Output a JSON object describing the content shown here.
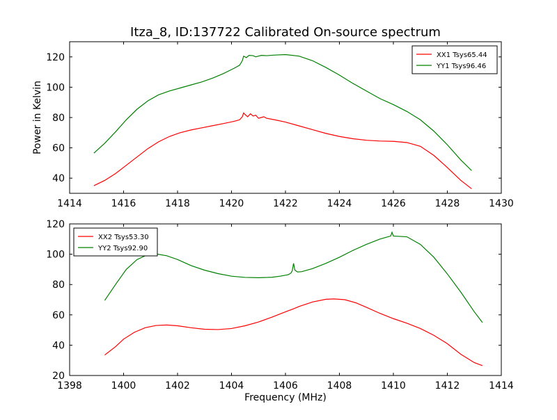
{
  "figure": {
    "title": "Itza_8, ID:137722 Calibrated On-source spectrum"
  },
  "chart_data": [
    {
      "type": "line",
      "title": "Itza_8, ID:137722 Calibrated On-source spectrum",
      "xlabel": "",
      "ylabel": "Power in Kelvin",
      "xlim": [
        1414,
        1430
      ],
      "ylim": [
        30,
        130
      ],
      "xticks": [
        1414,
        1416,
        1418,
        1420,
        1422,
        1424,
        1426,
        1428,
        1430
      ],
      "yticks": [
        40,
        60,
        80,
        100,
        120
      ],
      "grid": false,
      "legend_position": "top-right",
      "series": [
        {
          "name": "XX1 Tsys65.44",
          "color": "#ff0000",
          "points": [
            [
              1414.9,
              35
            ],
            [
              1415.3,
              38.5
            ],
            [
              1415.7,
              43
            ],
            [
              1416.1,
              48.5
            ],
            [
              1416.5,
              54
            ],
            [
              1416.9,
              59.5
            ],
            [
              1417.3,
              64
            ],
            [
              1417.7,
              67.5
            ],
            [
              1418.1,
              70
            ],
            [
              1418.5,
              71.8
            ],
            [
              1418.9,
              73.2
            ],
            [
              1419.3,
              74.6
            ],
            [
              1419.7,
              76
            ],
            [
              1420.1,
              77.5
            ],
            [
              1420.3,
              78.5
            ],
            [
              1420.4,
              80.5
            ],
            [
              1420.45,
              83
            ],
            [
              1420.5,
              82
            ],
            [
              1420.6,
              80.5
            ],
            [
              1420.7,
              82.5
            ],
            [
              1420.8,
              81
            ],
            [
              1420.9,
              81.5
            ],
            [
              1421.0,
              79.5
            ],
            [
              1421.1,
              80
            ],
            [
              1421.2,
              80.5
            ],
            [
              1421.3,
              79.5
            ],
            [
              1421.6,
              78.5
            ],
            [
              1422.0,
              77
            ],
            [
              1422.5,
              74.5
            ],
            [
              1423.0,
              72
            ],
            [
              1423.5,
              69.5
            ],
            [
              1424.0,
              67.5
            ],
            [
              1424.5,
              66
            ],
            [
              1425.0,
              65
            ],
            [
              1425.5,
              64.5
            ],
            [
              1426.0,
              64.3
            ],
            [
              1426.5,
              63.5
            ],
            [
              1427.0,
              61
            ],
            [
              1427.5,
              55
            ],
            [
              1428.0,
              47
            ],
            [
              1428.5,
              38.5
            ],
            [
              1428.9,
              33
            ]
          ]
        },
        {
          "name": "YY1 Tsys96.46",
          "color": "#008000",
          "points": [
            [
              1414.9,
              56.5
            ],
            [
              1415.3,
              63
            ],
            [
              1415.7,
              70.5
            ],
            [
              1416.1,
              78.5
            ],
            [
              1416.5,
              85.5
            ],
            [
              1416.9,
              91
            ],
            [
              1417.3,
              95
            ],
            [
              1417.7,
              97.5
            ],
            [
              1418.1,
              99.5
            ],
            [
              1418.5,
              101.5
            ],
            [
              1418.9,
              103.5
            ],
            [
              1419.3,
              106
            ],
            [
              1419.7,
              109
            ],
            [
              1420.1,
              112.5
            ],
            [
              1420.3,
              114.5
            ],
            [
              1420.4,
              117.5
            ],
            [
              1420.45,
              120.5
            ],
            [
              1420.55,
              119.5
            ],
            [
              1420.65,
              121
            ],
            [
              1420.8,
              120.8
            ],
            [
              1420.9,
              120
            ],
            [
              1421.0,
              120.5
            ],
            [
              1421.1,
              121
            ],
            [
              1421.3,
              120.8
            ],
            [
              1421.6,
              121.2
            ],
            [
              1422.0,
              121.5
            ],
            [
              1422.5,
              120.5
            ],
            [
              1423.0,
              117.5
            ],
            [
              1423.5,
              113
            ],
            [
              1424.0,
              108
            ],
            [
              1424.5,
              102.5
            ],
            [
              1425.0,
              97.5
            ],
            [
              1425.5,
              92.5
            ],
            [
              1426.0,
              88.5
            ],
            [
              1426.5,
              84
            ],
            [
              1427.0,
              78.5
            ],
            [
              1427.5,
              71
            ],
            [
              1428.0,
              62
            ],
            [
              1428.5,
              52
            ],
            [
              1428.9,
              45
            ]
          ]
        }
      ]
    },
    {
      "type": "line",
      "title": "",
      "xlabel": "Frequency (MHz)",
      "ylabel": "",
      "xlim": [
        1398,
        1414
      ],
      "ylim": [
        20,
        120
      ],
      "xticks": [
        1398,
        1400,
        1402,
        1404,
        1406,
        1408,
        1410,
        1412,
        1414
      ],
      "yticks": [
        20,
        40,
        60,
        80,
        100,
        120
      ],
      "grid": false,
      "legend_position": "top-left",
      "series": [
        {
          "name": "XX2 Tsys53.30",
          "color": "#ff0000",
          "points": [
            [
              1399.3,
              33.5
            ],
            [
              1399.7,
              39
            ],
            [
              1400.0,
              44
            ],
            [
              1400.4,
              48.5
            ],
            [
              1400.8,
              51.5
            ],
            [
              1401.2,
              53
            ],
            [
              1401.6,
              53.3
            ],
            [
              1402.0,
              52.8
            ],
            [
              1402.5,
              51.5
            ],
            [
              1403.0,
              50.5
            ],
            [
              1403.5,
              50.3
            ],
            [
              1404.0,
              51
            ],
            [
              1404.5,
              52.8
            ],
            [
              1405.0,
              55.3
            ],
            [
              1405.5,
              58.5
            ],
            [
              1406.0,
              62
            ],
            [
              1406.3,
              64
            ],
            [
              1406.5,
              65.5
            ],
            [
              1407.0,
              68.5
            ],
            [
              1407.5,
              70.3
            ],
            [
              1407.8,
              70.5
            ],
            [
              1408.2,
              70
            ],
            [
              1408.6,
              68
            ],
            [
              1409.0,
              65
            ],
            [
              1409.5,
              61
            ],
            [
              1410.0,
              57.5
            ],
            [
              1410.5,
              54.5
            ],
            [
              1411.0,
              51
            ],
            [
              1411.5,
              46.5
            ],
            [
              1412.0,
              41
            ],
            [
              1412.5,
              34
            ],
            [
              1413.0,
              28.5
            ],
            [
              1413.3,
              26.5
            ]
          ]
        },
        {
          "name": "YY2 Tsys92.90",
          "color": "#008000",
          "points": [
            [
              1399.3,
              69.5
            ],
            [
              1399.7,
              80
            ],
            [
              1400.1,
              90
            ],
            [
              1400.5,
              96.5
            ],
            [
              1400.9,
              99.8
            ],
            [
              1401.2,
              100.2
            ],
            [
              1401.6,
              99
            ],
            [
              1402.0,
              96.5
            ],
            [
              1402.5,
              92.5
            ],
            [
              1403.0,
              89.5
            ],
            [
              1403.5,
              87.2
            ],
            [
              1404.0,
              85.5
            ],
            [
              1404.5,
              84.7
            ],
            [
              1405.0,
              84.5
            ],
            [
              1405.5,
              84.8
            ],
            [
              1405.8,
              85.5
            ],
            [
              1406.1,
              86.5
            ],
            [
              1406.2,
              87.5
            ],
            [
              1406.25,
              89
            ],
            [
              1406.3,
              94
            ],
            [
              1406.35,
              89.5
            ],
            [
              1406.45,
              88.3
            ],
            [
              1406.6,
              88.5
            ],
            [
              1407.0,
              90.5
            ],
            [
              1407.5,
              94
            ],
            [
              1408.0,
              98
            ],
            [
              1408.5,
              102.5
            ],
            [
              1409.0,
              106.5
            ],
            [
              1409.5,
              110
            ],
            [
              1409.9,
              112
            ],
            [
              1409.95,
              114.5
            ],
            [
              1410.0,
              112
            ],
            [
              1410.5,
              111.5
            ],
            [
              1411.0,
              106.5
            ],
            [
              1411.5,
              98
            ],
            [
              1412.0,
              87
            ],
            [
              1412.5,
              75
            ],
            [
              1413.0,
              62
            ],
            [
              1413.3,
              55
            ]
          ]
        }
      ]
    }
  ]
}
